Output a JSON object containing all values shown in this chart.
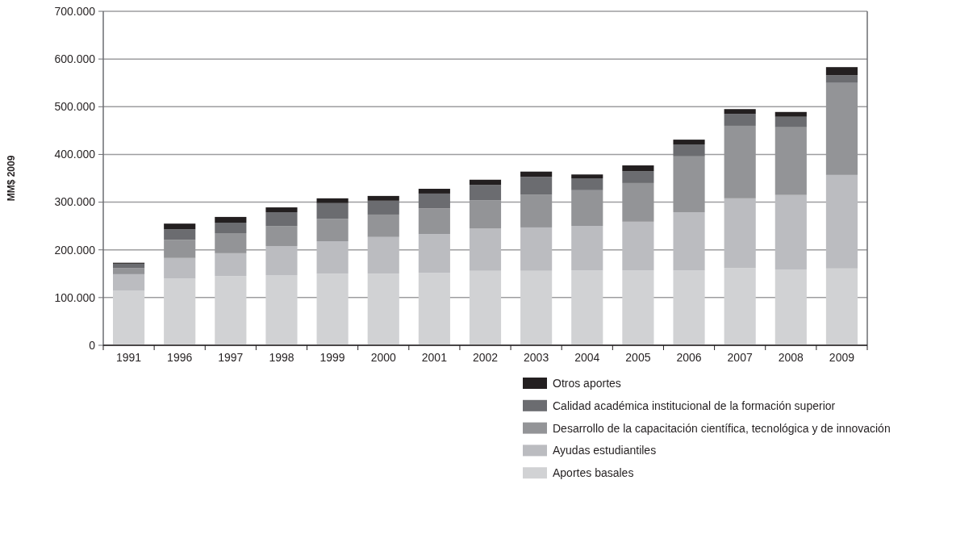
{
  "chart_data": {
    "type": "bar",
    "stacked": true,
    "ylabel": "MM$ 2009",
    "categories": [
      "1991",
      "1996",
      "1997",
      "1998",
      "1999",
      "2000",
      "2001",
      "2002",
      "2003",
      "2004",
      "2005",
      "2006",
      "2007",
      "2008",
      "2009"
    ],
    "series": [
      {
        "name": "Aportes basales",
        "color": "#d1d2d4",
        "values": [
          115000,
          140000,
          145000,
          147000,
          150000,
          150000,
          152000,
          156000,
          156000,
          157000,
          157000,
          157000,
          162000,
          159000,
          161000
        ]
      },
      {
        "name": "Ayudas estudiantiles",
        "color": "#bbbcc0",
        "values": [
          34000,
          43000,
          48000,
          61000,
          68000,
          77000,
          81000,
          89000,
          91000,
          93000,
          102000,
          122000,
          146000,
          156000,
          196000
        ]
      },
      {
        "name": "Desarrollo de la capacitación científica, tecnológica y de innovación",
        "color": "#939497",
        "values": [
          13000,
          38000,
          42000,
          42000,
          47000,
          47000,
          54000,
          59000,
          69000,
          75000,
          81000,
          117000,
          152000,
          142000,
          193000
        ]
      },
      {
        "name": "Calidad académica institucional de la formación superior",
        "color": "#6b6c70",
        "values": [
          9000,
          22000,
          22000,
          29000,
          33000,
          29000,
          31000,
          32000,
          37000,
          25000,
          25000,
          25000,
          25000,
          22000,
          16000
        ]
      },
      {
        "name": "Otros aportes",
        "color": "#231f20",
        "values": [
          2000,
          12000,
          12000,
          10000,
          10000,
          10000,
          10000,
          11000,
          11000,
          8000,
          12000,
          10000,
          10000,
          10000,
          17000
        ]
      }
    ],
    "ylim": [
      0,
      700000
    ],
    "yticks": [
      0,
      {
        "value": 100000,
        "label": "100.000"
      },
      {
        "value": 200000,
        "label": "200.000"
      },
      {
        "value": 300000,
        "label": "300.000"
      },
      {
        "value": 400000,
        "label": "400.000"
      },
      {
        "value": 500000,
        "label": "500.000"
      },
      {
        "value": 600000,
        "label": "600.000"
      },
      {
        "value": 700000,
        "label": "700.000"
      }
    ],
    "grid": "y",
    "legend": "bottom right"
  }
}
